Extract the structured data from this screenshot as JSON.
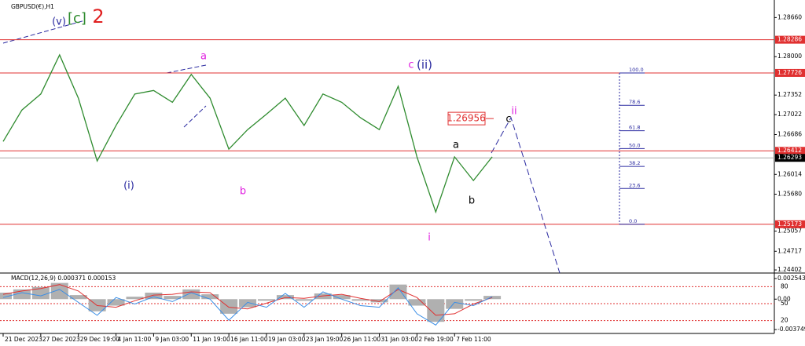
{
  "chart_data": [
    {
      "type": "line",
      "title": "GBPUSD(€),H1",
      "color": "#2e8b2e",
      "x": [
        0,
        20,
        40,
        60,
        80,
        100,
        120,
        140,
        160,
        180,
        200,
        220,
        240,
        260,
        280,
        300,
        320,
        340,
        360,
        380,
        400,
        420,
        440,
        460,
        480,
        500,
        520
      ],
      "values": [
        1.2657,
        1.271,
        1.2737,
        1.2803,
        1.273,
        1.2624,
        1.2684,
        1.2737,
        1.2743,
        1.2723,
        1.277,
        1.273,
        1.2644,
        1.2677,
        1.2703,
        1.273,
        1.2684,
        1.2737,
        1.2723,
        1.2697,
        1.2677,
        1.275,
        1.2631,
        1.2538,
        1.2631,
        1.2591,
        1.2631
      ],
      "xlim": [
        0,
        820
      ],
      "xticks": [
        {
          "value": 0,
          "label": "21 Dec 2023"
        },
        {
          "value": 40,
          "label": "27 Dec 2023"
        },
        {
          "value": 80,
          "label": "29 Dec 19:00"
        },
        {
          "value": 120,
          "label": "4 Jan 11:00"
        },
        {
          "value": 160,
          "label": "9 Jan 03:00"
        },
        {
          "value": 200,
          "label": "11 Jan 19:00"
        },
        {
          "value": 240,
          "label": "16 Jan 11:00"
        },
        {
          "value": 280,
          "label": "19 Jan 03:00"
        },
        {
          "value": 320,
          "label": "23 Jan 19:00"
        },
        {
          "value": 360,
          "label": "26 Jan 11:00"
        },
        {
          "value": 400,
          "label": "31 Jan 03:00"
        },
        {
          "value": 440,
          "label": "2 Feb 19:00"
        },
        {
          "value": 480,
          "label": "7 Feb 11:00"
        }
      ],
      "ylim": [
        1.2435,
        1.2889
      ],
      "yticks": [
        {
          "value": 1.2866,
          "label": "1.28660"
        },
        {
          "value": 1.28,
          "label": "1.28000"
        },
        1.27352,
        1.27022,
        1.26686,
        1.26014,
        {
          "value": 1.2568,
          "label": "1.25680"
        },
        1.25057,
        1.24717,
        1.24402
      ],
      "hlines": [
        {
          "value": 1.28286,
          "label": "1.28286"
        },
        {
          "value": 1.27726,
          "label": "1.27726"
        },
        {
          "value": 1.26412,
          "label": "1.26412"
        },
        {
          "value": 1.25173,
          "label": "1.25173"
        }
      ],
      "current_price": {
        "value": 1.26293,
        "label": "1.26293"
      },
      "fib_levels": [
        {
          "value": 100,
          "label": "100.0"
        },
        78.6,
        61.8,
        {
          "value": 50,
          "label": "50.0"
        },
        38.2,
        23.6,
        {
          "value": 0,
          "label": "0.0"
        }
      ],
      "target": {
        "value": 1.26956,
        "label": "1.26956"
      },
      "annotations": [
        {
          "text": "(v)",
          "color": "#2a2aa0"
        },
        {
          "text": "[c]",
          "color": "#2e8b2e"
        },
        {
          "text": "2",
          "color": "#e02020"
        },
        {
          "text": "a",
          "color": "#e020e0"
        },
        {
          "text": "(i)",
          "color": "#2a2aa0"
        },
        {
          "text": "b",
          "color": "#e020e0"
        },
        {
          "text": "c",
          "color": "#e020e0"
        },
        {
          "text": "(ii)",
          "color": "#2a2aa0"
        },
        {
          "text": "a",
          "color": "#000000"
        },
        {
          "text": "b",
          "color": "#000000"
        },
        {
          "text": "i",
          "color": "#e020e0"
        },
        {
          "text": "c",
          "color": "#000000"
        },
        {
          "text": "ii",
          "color": "#e020e0"
        }
      ]
    },
    {
      "type": "macd",
      "title": "MACD(12,26,9) 0.000371 0.000153",
      "x": [
        0,
        20,
        40,
        60,
        80,
        100,
        120,
        140,
        160,
        180,
        200,
        220,
        240,
        260,
        280,
        300,
        320,
        340,
        360,
        380,
        400,
        420,
        440,
        460,
        480,
        500,
        520
      ],
      "series": [
        {
          "color": "#b0b0b0",
          "values": [
            0.0008,
            0.0012,
            0.0015,
            0.002,
            0.0005,
            -0.0015,
            -0.0008,
            0.0003,
            0.0008,
            0.0004,
            0.0012,
            0.0006,
            -0.0018,
            -0.001,
            -0.0002,
            0.0005,
            -0.0002,
            0.0007,
            0.0005,
            -0.0002,
            -0.0004,
            0.0018,
            -0.0008,
            -0.0028,
            -0.0012,
            -0.0002,
            0.0004
          ]
        },
        {
          "color": "#e03030",
          "values": [
            0.0006,
            0.001,
            0.0013,
            0.0018,
            0.001,
            -0.0008,
            -0.001,
            -0.0002,
            0.0005,
            0.0006,
            0.0009,
            0.0008,
            -0.001,
            -0.0012,
            -0.0005,
            0.0002,
            0.0001,
            0.0004,
            0.0006,
            0.0001,
            -0.0003,
            0.0012,
            0.0002,
            -0.002,
            -0.0018,
            -0.0006,
            0.0002
          ]
        },
        {
          "color": "#3a8ee6",
          "values": [
            0.0002,
            0.0008,
            0.0004,
            0.0012,
            -0.0004,
            -0.002,
            0.0002,
            -0.0006,
            0.0003,
            -0.0003,
            0.0008,
            0,
            -0.0026,
            -0.0004,
            -0.001,
            0.0007,
            -0.001,
            0.0009,
            0,
            -0.0008,
            -0.001,
            0.0014,
            -0.0018,
            -0.0032,
            -0.0004,
            -0.0008,
            0.0003
          ]
        }
      ],
      "xlim": [
        0,
        820
      ],
      "ylim": [
        -0.003749,
        0.002543
      ],
      "yticks": [
        0.002543,
        {
          "value": 0,
          "label": "0.00"
        },
        -0.003749
      ],
      "y2lim": [
        0,
        100
      ],
      "y2ticks": [
        80,
        50,
        20
      ]
    }
  ]
}
